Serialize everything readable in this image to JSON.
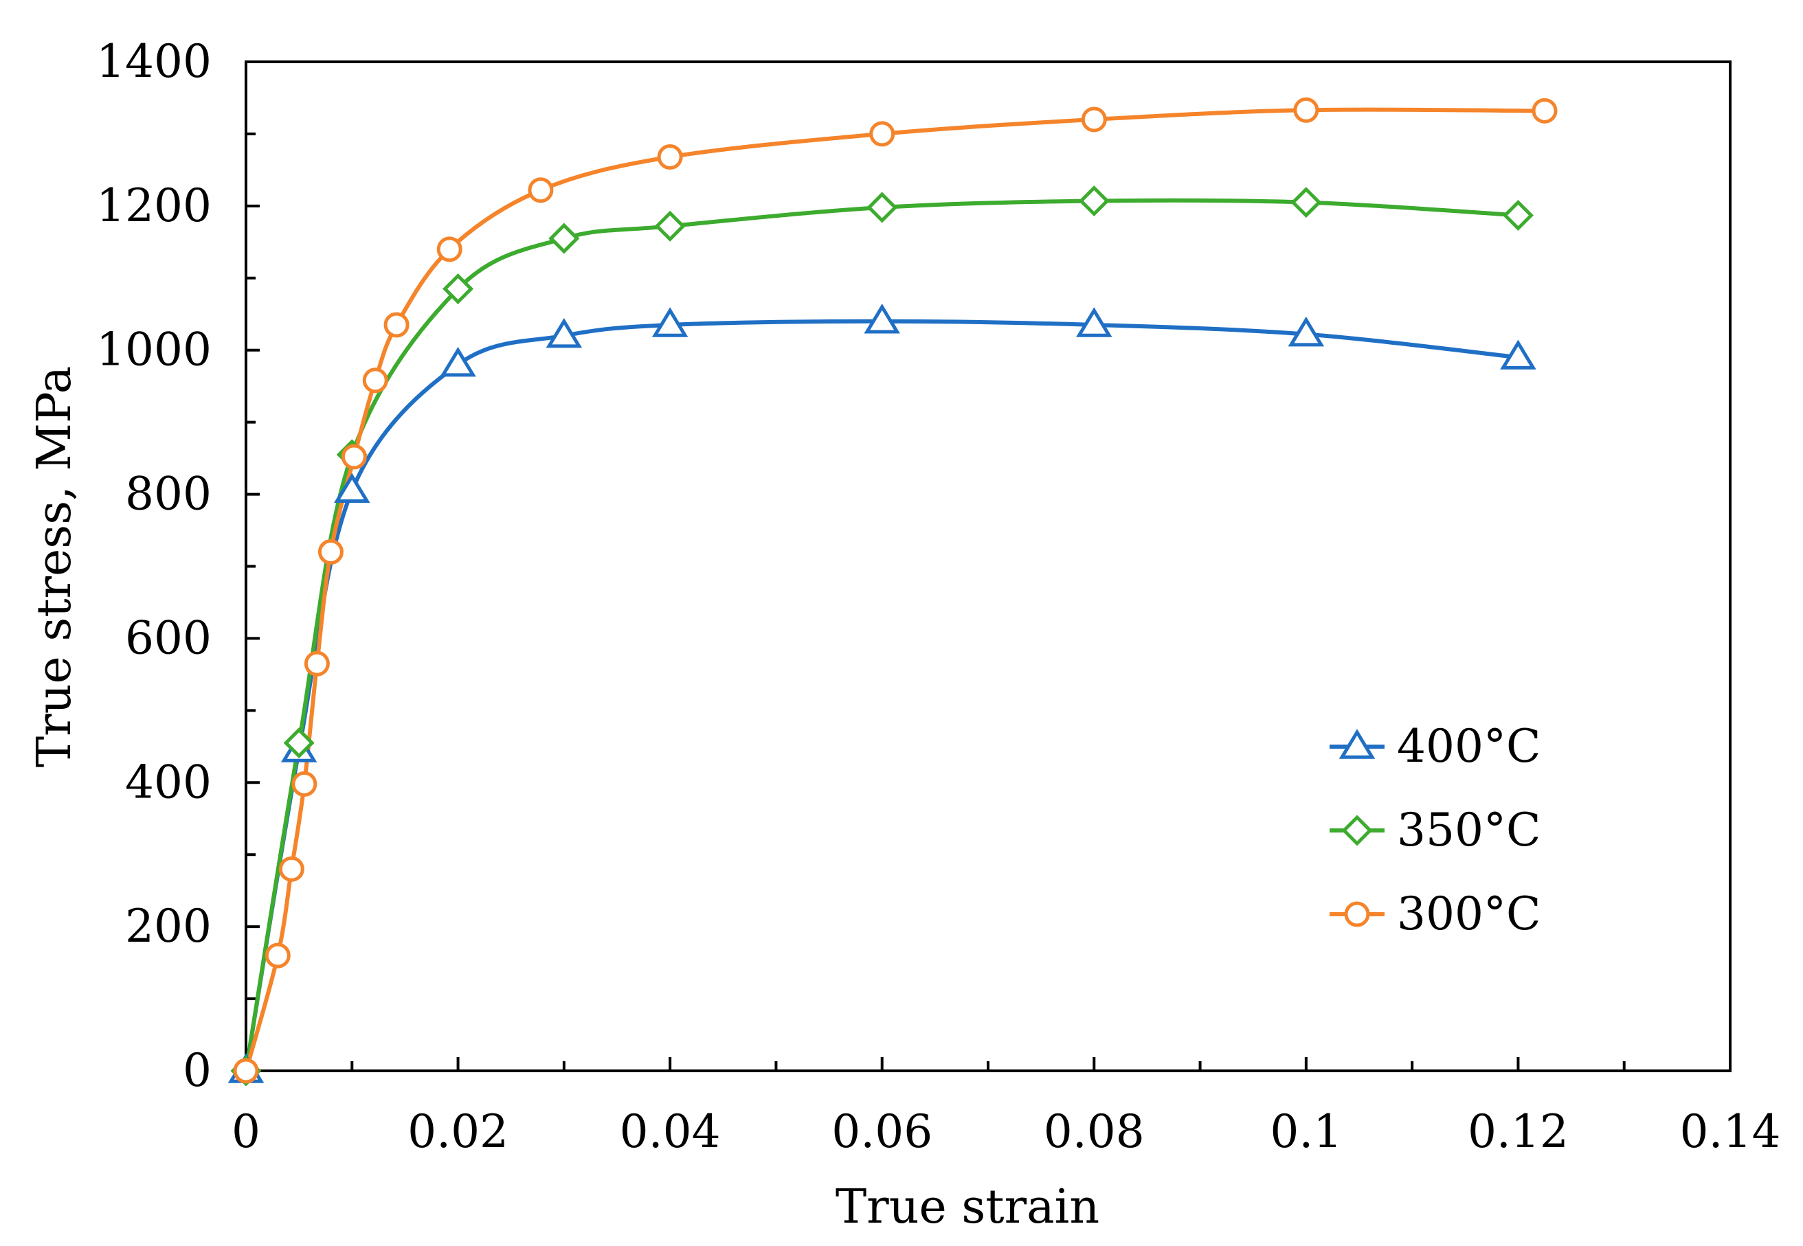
{
  "chart_data": {
    "type": "line",
    "title": "",
    "xlabel": "True strain",
    "ylabel": "True stress, MPa",
    "xlim": [
      0,
      0.14
    ],
    "ylim": [
      0,
      1400
    ],
    "x_ticks": [
      0,
      0.02,
      0.04,
      0.06,
      0.08,
      0.1,
      0.12,
      0.14
    ],
    "x_tick_labels": [
      "0",
      "0.02",
      "0.04",
      "0.06",
      "0.08",
      "0.1",
      "0.12",
      "0.14"
    ],
    "y_ticks": [
      0,
      200,
      400,
      600,
      800,
      1000,
      1200,
      1400
    ],
    "y_tick_labels": [
      "0",
      "200",
      "400",
      "600",
      "800",
      "1000",
      "1200",
      "1400"
    ],
    "grid": false,
    "legend_position": "right",
    "series": [
      {
        "name": "400°C",
        "color": "#1f6fc5",
        "marker": "triangle",
        "x": [
          0,
          0.005,
          0.01,
          0.02,
          0.03,
          0.04,
          0.06,
          0.08,
          0.1,
          0.12
        ],
        "y": [
          0,
          445,
          805,
          980,
          1020,
          1035,
          1040,
          1035,
          1022,
          990
        ]
      },
      {
        "name": "350°C",
        "color": "#3cab2e",
        "marker": "diamond",
        "x": [
          0,
          0.005,
          0.01,
          0.02,
          0.03,
          0.04,
          0.06,
          0.08,
          0.1,
          0.12
        ],
        "y": [
          0,
          455,
          855,
          1085,
          1155,
          1172,
          1198,
          1207,
          1205,
          1187
        ]
      },
      {
        "name": "300°C",
        "color": "#f5842a",
        "marker": "circle",
        "x": [
          0,
          0.003,
          0.0043,
          0.0055,
          0.0067,
          0.008,
          0.0102,
          0.0122,
          0.0142,
          0.0192,
          0.0278,
          0.04,
          0.06,
          0.08,
          0.1,
          0.1225
        ],
        "y": [
          0,
          160,
          280,
          398,
          565,
          720,
          852,
          958,
          1035,
          1140,
          1222,
          1268,
          1300,
          1320,
          1333,
          1332
        ]
      }
    ]
  }
}
